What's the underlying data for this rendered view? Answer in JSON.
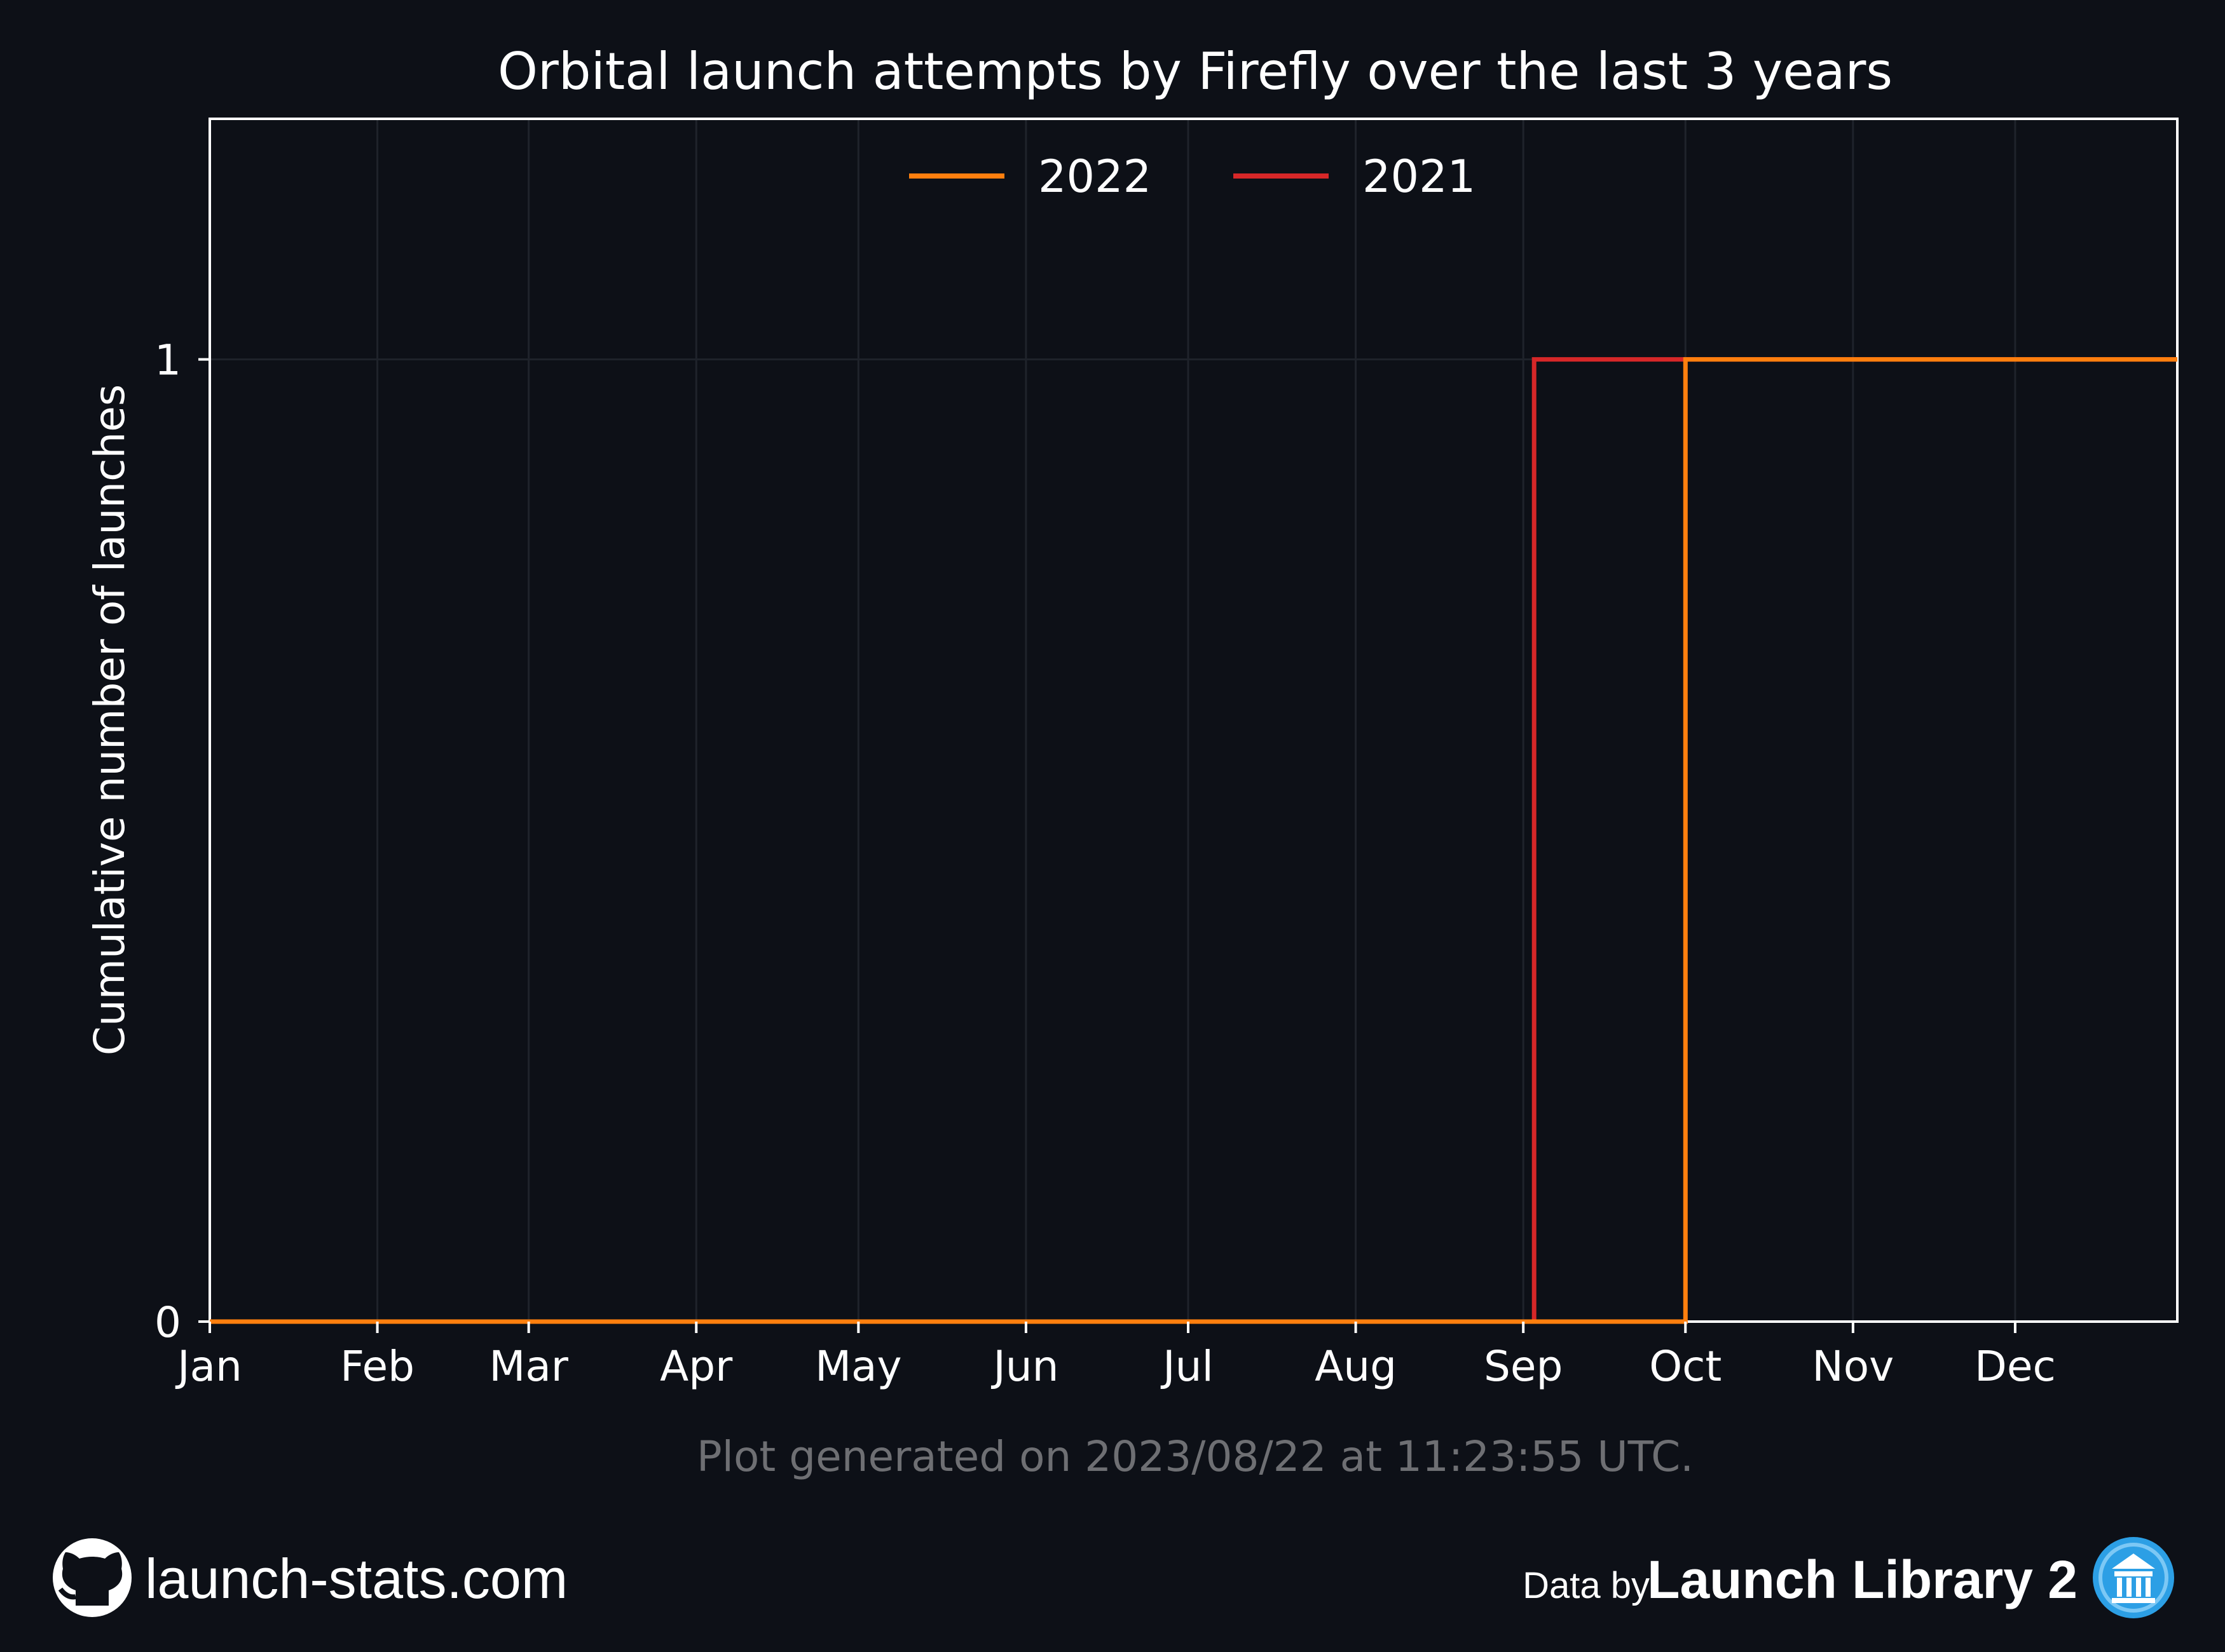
{
  "chart_data": {
    "type": "line",
    "step": true,
    "title": "Orbital launch attempts by Firefly over the last 3 years",
    "xlabel": "",
    "ylabel": "Cumulative number of launches",
    "x_ticks": [
      "Jan",
      "Feb",
      "Mar",
      "Apr",
      "May",
      "Jun",
      "Jul",
      "Aug",
      "Sep",
      "Oct",
      "Nov",
      "Dec"
    ],
    "xlim": [
      "01-01",
      "12-31"
    ],
    "y_ticks": [
      0,
      1
    ],
    "ylim": [
      0,
      1.25
    ],
    "grid": true,
    "legend": {
      "position": "top-center",
      "orientation": "horizontal"
    },
    "series": [
      {
        "name": "2022",
        "color": "#ff7f0e",
        "points": [
          [
            "01-01",
            0
          ],
          [
            "10-01",
            0
          ],
          [
            "10-01",
            1
          ],
          [
            "12-31",
            1
          ]
        ]
      },
      {
        "name": "2021",
        "color": "#d62728",
        "points": [
          [
            "01-01",
            0
          ],
          [
            "09-03",
            0
          ],
          [
            "09-03",
            1
          ],
          [
            "12-31",
            1
          ]
        ]
      }
    ],
    "footnote": "Plot generated on 2023/08/22 at 11:23:55 UTC."
  },
  "footer": {
    "site": "launch-stats.com",
    "site_icon": "github-icon",
    "data_by": "Data by",
    "library": "Launch Library 2",
    "library_icon": "launch-library-logo-icon"
  },
  "colors": {
    "background": "#0d1017",
    "axes": "#ffffff",
    "grid": "#1f232b",
    "footnote": "#6e6f73"
  }
}
